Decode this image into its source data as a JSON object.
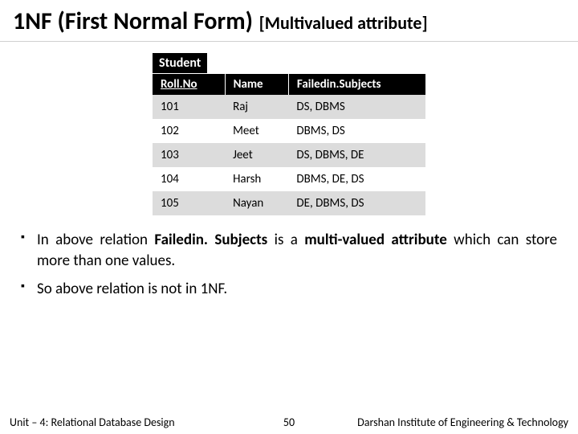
{
  "title": {
    "main": "1NF (First Normal Form)",
    "sub": "[Multivalued attribute]"
  },
  "table": {
    "label": "Student",
    "columns": [
      "Roll.No",
      "Name",
      "Failedin.Subjects"
    ],
    "underline_cols": [
      true,
      false,
      false
    ],
    "rows": [
      [
        "101",
        "Raj",
        "DS, DBMS"
      ],
      [
        "102",
        "Meet",
        "DBMS, DS"
      ],
      [
        "103",
        "Jeet",
        "DS, DBMS, DE"
      ],
      [
        "104",
        "Harsh",
        "DBMS, DE, DS"
      ],
      [
        "105",
        "Nayan",
        "DE, DBMS, DS"
      ]
    ],
    "row_stripe_odd": "#dcdcdc",
    "row_stripe_even": "#ffffff",
    "header_bg": "#000000",
    "header_fg": "#ffffff"
  },
  "bullets": {
    "b1_pre": "In above relation ",
    "b1_bold": "Failedin. Subjects",
    "b1_mid": " is a ",
    "b1_bold2": "multi-valued attribute",
    "b1_post": " which can store more than one values.",
    "b2": "So above relation is not in 1NF."
  },
  "footer": {
    "unit": "Unit – 4: Relational Database Design",
    "page": "50",
    "inst": "Darshan Institute of Engineering & Technology"
  }
}
